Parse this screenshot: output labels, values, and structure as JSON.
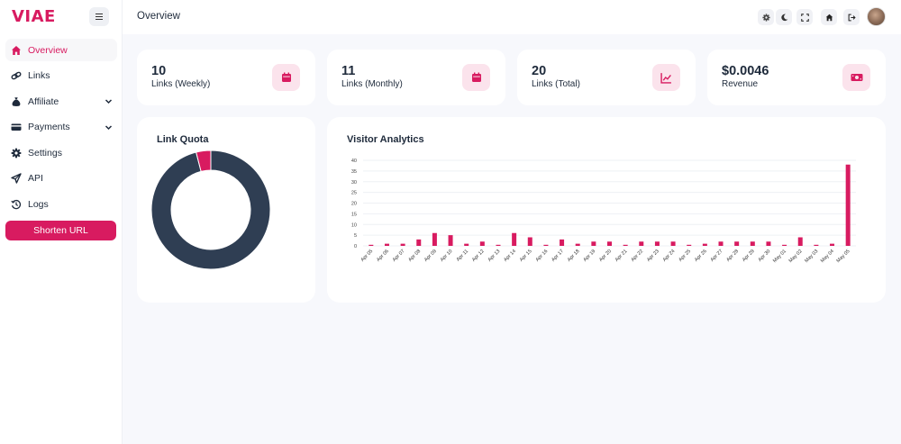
{
  "brand": {
    "name": "VIAE"
  },
  "sidebar": {
    "items": [
      {
        "label": "Overview",
        "icon": "home-icon",
        "active": true
      },
      {
        "label": "Links",
        "icon": "link-icon"
      },
      {
        "label": "Affiliate",
        "icon": "money-bag-icon",
        "expandable": true
      },
      {
        "label": "Payments",
        "icon": "credit-card-icon",
        "expandable": true
      },
      {
        "label": "Settings",
        "icon": "gear-icon"
      },
      {
        "label": "API",
        "icon": "send-icon"
      },
      {
        "label": "Logs",
        "icon": "history-icon"
      }
    ],
    "cta_label": "Shorten URL"
  },
  "topbar": {
    "title": "Overview",
    "buttons": [
      "settings-icon",
      "moon-icon",
      "fullscreen-icon",
      "home-icon",
      "logout-icon"
    ],
    "avatar": "user-avatar"
  },
  "stats": [
    {
      "value": "10",
      "label": "Links (Weekly)",
      "icon": "calendar-icon"
    },
    {
      "value": "11",
      "label": "Links (Monthly)",
      "icon": "calendar-icon"
    },
    {
      "value": "20",
      "label": "Links (Total)",
      "icon": "chart-line-icon"
    },
    {
      "value": "$0.0046",
      "label": "Revenue",
      "icon": "money-bill-icon"
    }
  ],
  "quota": {
    "title": "Link Quota"
  },
  "analytics": {
    "title": "Visitor Analytics"
  },
  "colors": {
    "accent": "#d81b60",
    "dark": "#2f3e53",
    "icon_bg": "#fbe3ec"
  },
  "chart_data": [
    {
      "type": "pie",
      "title": "Link Quota",
      "donut": true,
      "values": [
        4,
        96
      ],
      "colors": [
        "#d81b60",
        "#2f3e53"
      ]
    },
    {
      "type": "bar",
      "title": "Visitor Analytics",
      "ylim": [
        0,
        40
      ],
      "yticks": [
        0,
        5,
        10,
        15,
        20,
        25,
        30,
        35,
        40
      ],
      "grid": true,
      "categories": [
        "Apr 05",
        "Apr 06",
        "Apr 07",
        "Apr 08",
        "Apr 09",
        "Apr 10",
        "Apr 11",
        "Apr 12",
        "Apr 13",
        "Apr 14",
        "Apr 15",
        "Apr 16",
        "Apr 17",
        "Apr 18",
        "Apr 19",
        "Apr 20",
        "Apr 21",
        "Apr 22",
        "Apr 23",
        "Apr 24",
        "Apr 25",
        "Apr 26",
        "Apr 27",
        "Apr 28",
        "Apr 29",
        "Apr 30",
        "May 01",
        "May 02",
        "May 03",
        "May 04",
        "May 05"
      ],
      "values": [
        0.5,
        1,
        1,
        3,
        6,
        5,
        1,
        2,
        0.5,
        6,
        4,
        0.5,
        3,
        1,
        2,
        2,
        0.5,
        2,
        2,
        2,
        0.5,
        1,
        2,
        2,
        2,
        2,
        0.5,
        4,
        0.5,
        1,
        38
      ],
      "color": "#d81b60"
    }
  ]
}
